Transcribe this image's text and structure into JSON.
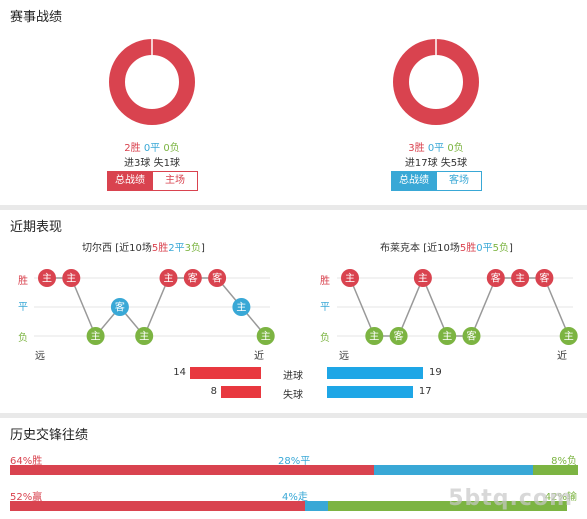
{
  "section1": {
    "title": "赛事战绩",
    "left": {
      "win": "2胜",
      "draw": "0平",
      "loss": "0负",
      "goals": "进3球",
      "conceded": "失1球",
      "tab_active": "总战绩",
      "tab_other": "主场",
      "win_fraction": 1.0,
      "color": "#d9434f"
    },
    "right": {
      "win": "3胜",
      "draw": "0平",
      "loss": "0负",
      "goals": "进17球",
      "conceded": "失5球",
      "tab_active": "总战绩",
      "tab_other": "客场",
      "win_fraction": 1.0,
      "color": "#d9434f"
    }
  },
  "section2": {
    "title": "近期表现",
    "left_team": {
      "name": "切尔西",
      "prefix": "[近10场",
      "win": "5胜",
      "draw": "2平",
      "loss": "3负",
      "suffix": "]",
      "far": "远",
      "near": "近",
      "results": [
        {
          "r": "W",
          "label": "主"
        },
        {
          "r": "W",
          "label": "主"
        },
        {
          "r": "L",
          "label": "主"
        },
        {
          "r": "D",
          "label": "客"
        },
        {
          "r": "L",
          "label": "主"
        },
        {
          "r": "W",
          "label": "主"
        },
        {
          "r": "W",
          "label": "客"
        },
        {
          "r": "W",
          "label": "客"
        },
        {
          "r": "D",
          "label": "主"
        },
        {
          "r": "L",
          "label": "主"
        }
      ]
    },
    "right_team": {
      "name": "布莱克本",
      "prefix": "[近10场",
      "win": "5胜",
      "draw": "0平",
      "loss": "5负",
      "suffix": "]",
      "far": "远",
      "near": "近",
      "results": [
        {
          "r": "W",
          "label": "主"
        },
        {
          "r": "L",
          "label": "主"
        },
        {
          "r": "L",
          "label": "客"
        },
        {
          "r": "W",
          "label": "主"
        },
        {
          "r": "L",
          "label": "主"
        },
        {
          "r": "L",
          "label": "客"
        },
        {
          "r": "W",
          "label": "客"
        },
        {
          "r": "W",
          "label": "主"
        },
        {
          "r": "W",
          "label": "客"
        },
        {
          "r": "L",
          "label": "主"
        }
      ]
    },
    "y_labels": {
      "win": "胜",
      "draw": "平",
      "loss": "负"
    },
    "goals": {
      "label": "进球",
      "left": 14,
      "right": 19
    },
    "conceded": {
      "label": "失球",
      "left": 8,
      "right": 17
    },
    "colors": {
      "win": "#d9434f",
      "draw": "#39a8d6",
      "loss": "#7cb442",
      "left_bar": "#e8383f",
      "right_bar": "#1ea6e6"
    }
  },
  "section3": {
    "title": "历史交锋往绩",
    "row1": {
      "left": "64%胜",
      "mid": "28%平",
      "right": "8%负",
      "values": [
        64,
        28,
        8
      ]
    },
    "row2": {
      "left": "52%赢",
      "mid": "4%走",
      "right": "42%输",
      "values": [
        52,
        4,
        42
      ]
    }
  },
  "watermark": "5btq.com"
}
